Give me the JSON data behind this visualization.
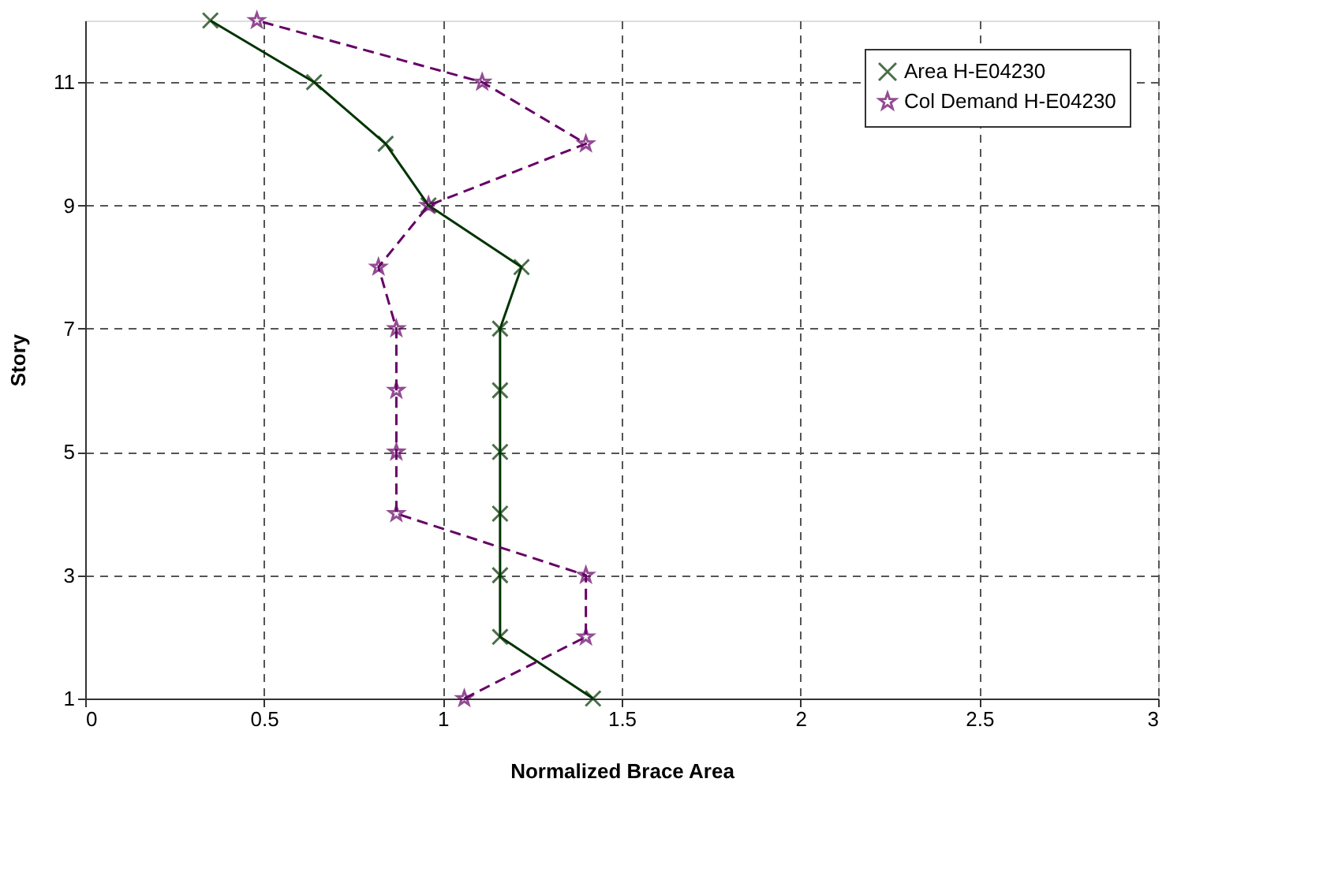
{
  "chart_data": {
    "type": "line",
    "xlabel": "Normalized Brace Area",
    "ylabel": "Story",
    "xlim": [
      0,
      3
    ],
    "xticks": [
      0,
      0.5,
      1,
      1.5,
      2,
      2.5,
      3
    ],
    "ylim": [
      1,
      12
    ],
    "yticks": [
      1,
      3,
      5,
      7,
      9,
      11
    ],
    "grid": true,
    "legend": "top right",
    "series": [
      {
        "name": "Area H-E04230",
        "color": "#003300",
        "marker": "cross",
        "line_style": "solid",
        "x": [
          1.42,
          1.16,
          1.16,
          1.16,
          1.16,
          1.16,
          1.16,
          1.22,
          0.96,
          0.84,
          0.64,
          0.35
        ],
        "values": [
          1,
          2,
          3,
          4,
          5,
          6,
          7,
          8,
          9,
          10,
          11,
          12
        ]
      },
      {
        "name": "Col Demand H-E04230",
        "color": "#660066",
        "marker": "star",
        "line_style": "dashed",
        "x": [
          1.06,
          1.4,
          1.4,
          0.87,
          0.87,
          0.87,
          0.87,
          0.82,
          0.96,
          1.4,
          1.11,
          0.48
        ],
        "values": [
          1,
          2,
          3,
          4,
          5,
          6,
          7,
          8,
          9,
          10,
          11,
          12
        ]
      }
    ]
  }
}
